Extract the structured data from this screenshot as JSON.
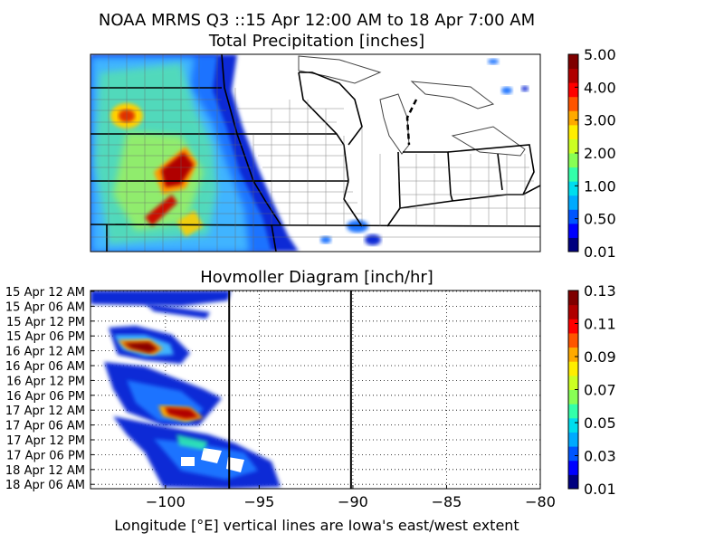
{
  "titles": {
    "main": "NOAA MRMS Q3 ::15 Apr 12:00 AM to 18 Apr 7:00 AM",
    "map": "Total Precipitation [inches]",
    "hovmoller": "Hovmoller Diagram [inch/hr]"
  },
  "map_colorbar": {
    "ticks": [
      "5.00",
      "4.00",
      "3.00",
      "2.00",
      "1.00",
      "0.50",
      "0.01"
    ],
    "colors": [
      "#00007f",
      "#0000ff",
      "#0055ff",
      "#00aaff",
      "#00ddee",
      "#33ffaa",
      "#88ff55",
      "#ccff22",
      "#ffee00",
      "#ffaa00",
      "#ff5500",
      "#ff0000",
      "#b00000",
      "#7f0000"
    ]
  },
  "hov_colorbar": {
    "ticks": [
      "0.13",
      "0.11",
      "0.09",
      "0.07",
      "0.05",
      "0.03",
      "0.01"
    ],
    "colors": [
      "#00007f",
      "#0000ff",
      "#0055ff",
      "#00aaff",
      "#00ddee",
      "#33ffaa",
      "#88ff55",
      "#ccff22",
      "#ffee00",
      "#ffaa00",
      "#ff5500",
      "#ff0000",
      "#b00000",
      "#7f0000"
    ]
  },
  "chart_data": {
    "type": "heatmap",
    "title": "Hovmoller Diagram [inch/hr]",
    "xlabel": "Longitude [°E] vertical lines are Iowa's east/west extent",
    "xlim": [
      -104,
      -80
    ],
    "x_ticks": [
      -100,
      -95,
      -90,
      -85,
      -80
    ],
    "y_ticks": [
      "15 Apr 12 AM",
      "15 Apr 06 AM",
      "15 Apr 12 PM",
      "15 Apr 06 PM",
      "16 Apr 12 AM",
      "16 Apr 06 AM",
      "16 Apr 12 PM",
      "16 Apr 06 PM",
      "17 Apr 12 AM",
      "17 Apr 06 AM",
      "17 Apr 12 PM",
      "17 Apr 06 PM",
      "18 Apr 12 AM",
      "18 Apr 06 AM"
    ],
    "iowa_extent_lines": [
      -96.6,
      -90.1
    ],
    "grid": true,
    "colorbar_range": [
      0.01,
      0.13
    ],
    "regions": [
      {
        "lon": [
          -104,
          -97
        ],
        "time": [
          "15 Apr 12 AM",
          "15 Apr 06 AM"
        ],
        "value": 0.02
      },
      {
        "lon": [
          -103.4,
          -99.5
        ],
        "time": [
          "15 Apr 06 PM",
          "16 Apr 06 AM"
        ],
        "value": 0.06
      },
      {
        "lon": [
          -102.2,
          -100.0
        ],
        "time": [
          "16 Apr 12 AM",
          "16 Apr 03 AM"
        ],
        "value": 0.12
      },
      {
        "lon": [
          -102,
          -97
        ],
        "time": [
          "16 Apr 12 PM",
          "17 Apr 12 AM"
        ],
        "value": 0.04
      },
      {
        "lon": [
          -100,
          -98
        ],
        "time": [
          "17 Apr 12 AM",
          "17 Apr 03 AM"
        ],
        "value": 0.12
      },
      {
        "lon": [
          -102,
          -94
        ],
        "time": [
          "17 Apr 06 AM",
          "18 Apr 06 AM"
        ],
        "value": 0.03
      }
    ]
  }
}
